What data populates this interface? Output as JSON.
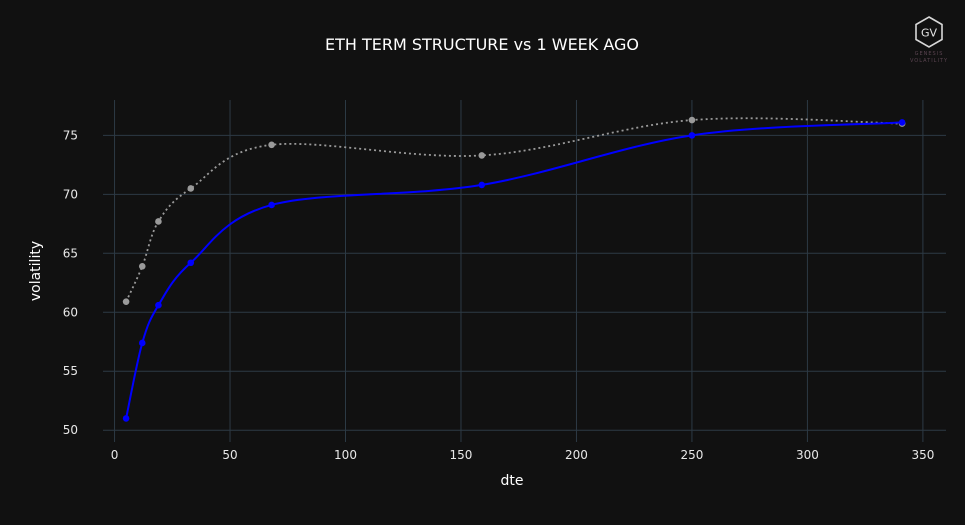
{
  "chart_data": {
    "type": "line",
    "title": "ETH TERM STRUCTURE vs 1 WEEK AGO",
    "xlabel": "dte",
    "ylabel": "volatility",
    "xlim": [
      -5,
      360
    ],
    "ylim": [
      49,
      78
    ],
    "x_ticks": [
      0,
      50,
      100,
      150,
      200,
      250,
      300,
      350
    ],
    "y_ticks": [
      50,
      55,
      60,
      65,
      70,
      75
    ],
    "grid": true,
    "series": [
      {
        "color": "#0000ff",
        "style": "solid",
        "x": [
          5,
          12,
          19,
          33,
          68,
          159,
          250,
          341
        ],
        "y": [
          51.0,
          57.4,
          60.6,
          64.2,
          69.1,
          70.8,
          75.0,
          76.1
        ]
      },
      {
        "color": "#9a9a9a",
        "style": "dotted",
        "x": [
          5,
          12,
          19,
          33,
          68,
          159,
          250,
          341
        ],
        "y": [
          60.9,
          63.9,
          67.7,
          70.5,
          74.2,
          73.3,
          76.3,
          76.0
        ]
      }
    ]
  },
  "logo": {
    "initials": "GV",
    "line1": "GENESIS",
    "line2": "VOLATILITY"
  }
}
